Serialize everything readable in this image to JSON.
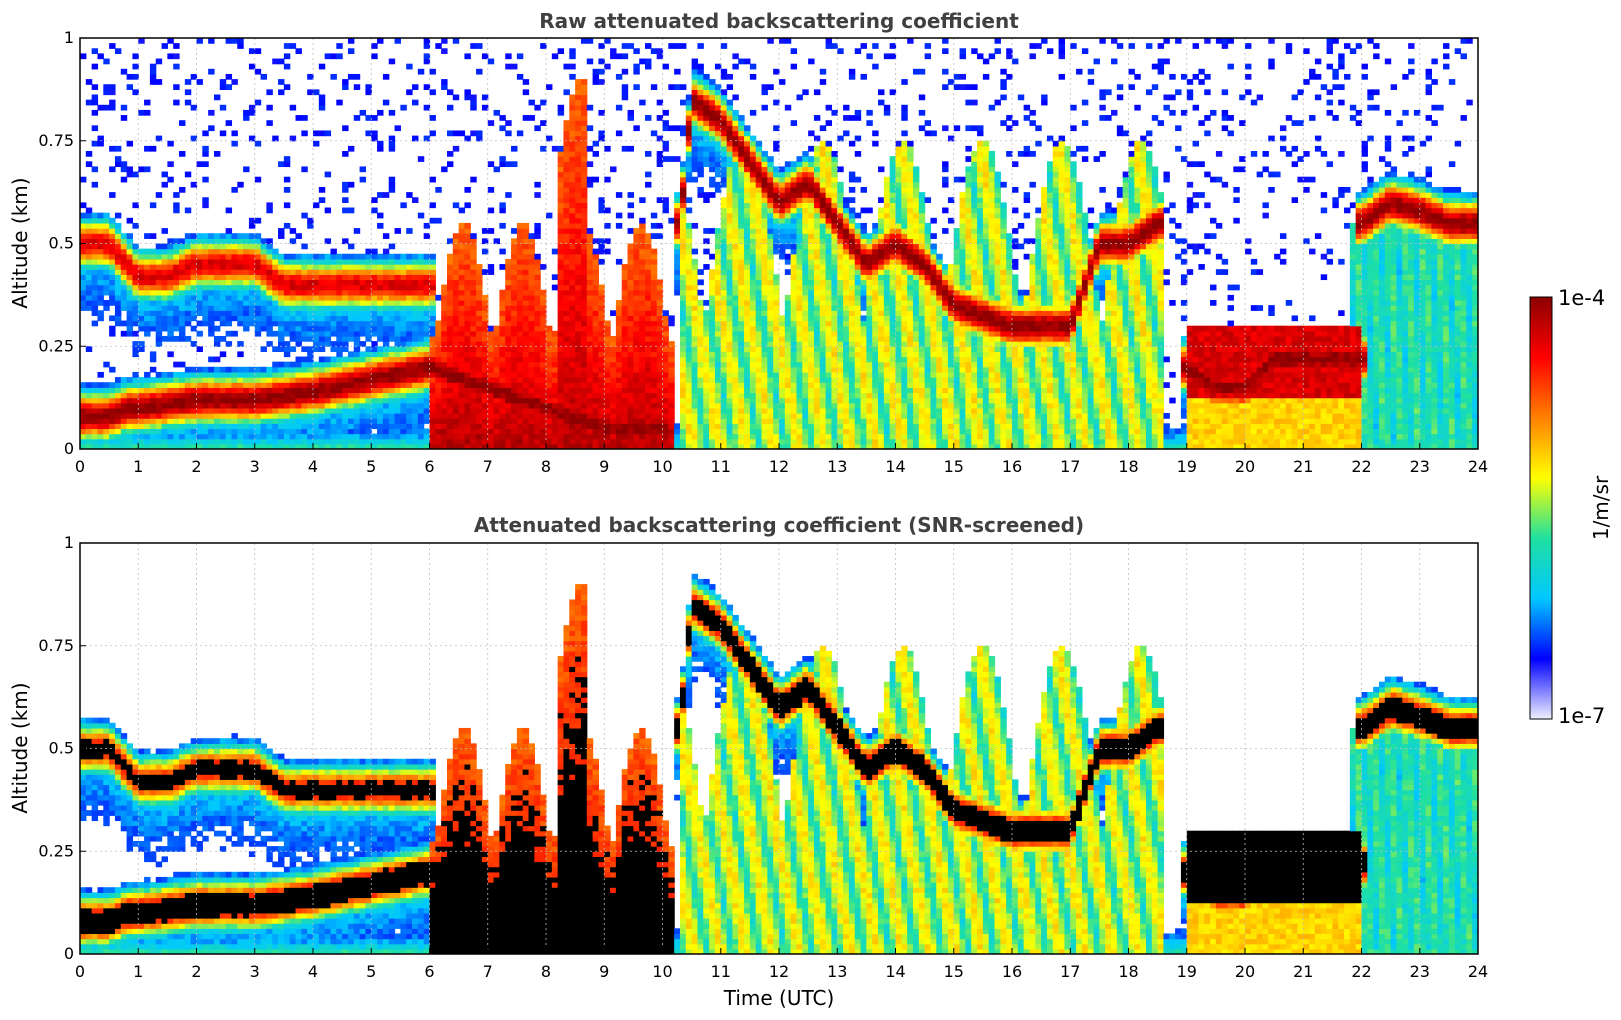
{
  "chart_data": [
    {
      "type": "heatmap",
      "title": "Raw attenuated backscattering coefficient",
      "xlabel": "",
      "ylabel": "Altitude (km)",
      "xlim": [
        0,
        24
      ],
      "ylim": [
        0,
        1
      ],
      "xticks": [
        "0",
        "1",
        "2",
        "3",
        "4",
        "5",
        "6",
        "7",
        "8",
        "9",
        "10",
        "11",
        "12",
        "13",
        "14",
        "15",
        "16",
        "17",
        "18",
        "19",
        "20",
        "21",
        "22",
        "23",
        "24"
      ],
      "yticks": [
        "0",
        "0.25",
        "0.5",
        "0.75",
        "1"
      ],
      "grid": true,
      "layers": [
        {
          "time": [
            0,
            0.3,
            0.5,
            0.8,
            1,
            2,
            3,
            4,
            5,
            6,
            7,
            8,
            9,
            10
          ],
          "altitude": [
            0.08,
            0.08,
            0.08,
            0.1,
            0.1,
            0.12,
            0.12,
            0.14,
            0.17,
            0.2,
            0.15,
            0.1,
            0.05,
            0.05
          ],
          "level": 1.0
        },
        {
          "time": [
            0,
            0.3,
            0.5,
            0.8,
            1,
            1.5,
            2,
            3,
            3.5,
            4,
            5,
            6
          ],
          "altitude": [
            0.5,
            0.5,
            0.5,
            0.45,
            0.42,
            0.42,
            0.45,
            0.45,
            0.4,
            0.4,
            0.4,
            0.4
          ],
          "level": 0.9
        },
        {
          "time": [
            10.3,
            10.5,
            11,
            11.5,
            12,
            12.5,
            13,
            13.5,
            14,
            14.5,
            15,
            16,
            17,
            17.5,
            18,
            18.5
          ],
          "altitude": [
            0.55,
            0.85,
            0.8,
            0.7,
            0.6,
            0.65,
            0.55,
            0.45,
            0.5,
            0.45,
            0.35,
            0.3,
            0.3,
            0.5,
            0.5,
            0.55
          ],
          "level": 1.0
        },
        {
          "time": [
            19,
            19.5,
            20,
            20.5,
            21,
            21.5,
            22
          ],
          "altitude": [
            0.2,
            0.15,
            0.15,
            0.22,
            0.22,
            0.22,
            0.22
          ],
          "level": 1.0
        },
        {
          "time": [
            22,
            22.5,
            23,
            23.5,
            24
          ],
          "altitude": [
            0.55,
            0.6,
            0.58,
            0.55,
            0.55
          ],
          "level": 1.0
        }
      ]
    },
    {
      "type": "heatmap",
      "title": "Attenuated backscattering coefficient (SNR-screened)",
      "xlabel": "Time (UTC)",
      "ylabel": "Altitude (km)",
      "xlim": [
        0,
        24
      ],
      "ylim": [
        0,
        1
      ],
      "xticks": [
        "0",
        "1",
        "2",
        "3",
        "4",
        "5",
        "6",
        "7",
        "8",
        "9",
        "10",
        "11",
        "12",
        "13",
        "14",
        "15",
        "16",
        "17",
        "18",
        "19",
        "20",
        "21",
        "22",
        "23",
        "24"
      ],
      "yticks": [
        "0",
        "0.25",
        "0.5",
        "0.75",
        "1"
      ],
      "grid": true,
      "saturated_color": "#000000"
    }
  ],
  "colorbar": {
    "label": "1/m/sr",
    "max_label": "1e-4",
    "min_label": "1e-7",
    "colors": [
      "#f0f0ff",
      "#0000ff",
      "#00c8ff",
      "#20e0a0",
      "#ffff00",
      "#ff8000",
      "#ff0000",
      "#8b0000"
    ]
  }
}
